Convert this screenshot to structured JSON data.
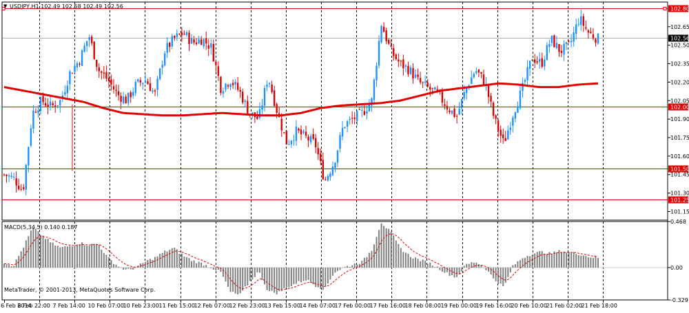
{
  "header": {
    "symbol_line": "USDJPY,H1  102.49 102.58 102.49 102.56"
  },
  "macd_header": "MACD(5,34,5) 0.140 0.187",
  "copyright": "MetaTrader, © 2001-2013, MetaQuotes Software Corp.",
  "colors": {
    "background": "#ffffff",
    "grid": "#000000",
    "bull_candle": "#1e90ff",
    "bear_candle": "#dd0000",
    "moving_average": "#e00000",
    "hline": "#e00000",
    "macd_hist": "#808080",
    "macd_signal": "#e00000",
    "axis_text": "#000000"
  },
  "chart_data": [
    {
      "type": "candlestick",
      "symbol": "USDJPY",
      "timeframe": "H1",
      "ohlc_header": {
        "open": 102.49,
        "high": 102.58,
        "low": 102.49,
        "close": 102.56
      },
      "ylim": [
        101.08,
        102.85
      ],
      "y_ticks": [
        "102.65",
        "102.50",
        "102.35",
        "102.20",
        "102.05",
        "101.90",
        "101.75",
        "101.60",
        "101.45",
        "101.30",
        "101.15"
      ],
      "x_labels": [
        "6 Feb 2014",
        "6 Feb 22:00",
        "7 Feb 14:00",
        "10 Feb 07:00",
        "10 Feb 23:00",
        "11 Feb 15:00",
        "12 Feb 07:00",
        "12 Feb 23:00",
        "13 Feb 15:00",
        "14 Feb 07:00",
        "17 Feb 00:00",
        "17 Feb 16:00",
        "18 Feb 08:00",
        "19 Feb 00:00",
        "19 Feb 16:00",
        "20 Feb 10:00",
        "21 Feb 02:00",
        "21 Feb 18:00"
      ],
      "horizontal_lines": [
        {
          "value": 102.8,
          "label": "102.80"
        },
        {
          "value": 102.0,
          "label": "102.00"
        },
        {
          "value": 101.5,
          "label": "101.50"
        },
        {
          "value": 101.25,
          "label": "101.25"
        }
      ],
      "current_price": {
        "value": 102.56,
        "label": "102.56"
      },
      "moving_average": [
        102.16,
        102.13,
        102.1,
        102.07,
        102.04,
        101.99,
        101.95,
        101.94,
        101.93,
        101.93,
        101.94,
        101.95,
        101.94,
        101.93,
        101.93,
        101.95,
        101.99,
        102.01,
        102.02,
        102.03,
        102.05,
        102.09,
        102.13,
        102.15,
        102.17,
        102.19,
        102.18,
        102.16,
        102.16,
        102.18,
        102.19
      ],
      "price_path": [
        101.45,
        101.42,
        101.32,
        101.95,
        102.05,
        102.0,
        102.05,
        102.28,
        102.38,
        102.58,
        102.3,
        102.22,
        102.1,
        102.05,
        102.18,
        102.22,
        102.1,
        102.45,
        102.55,
        102.6,
        102.52,
        102.55,
        102.48,
        102.15,
        102.22,
        102.12,
        101.95,
        101.9,
        102.25,
        101.95,
        101.7,
        101.8,
        101.75,
        101.7,
        101.4,
        101.55,
        101.85,
        101.9,
        101.95,
        102.05,
        102.68,
        102.45,
        102.35,
        102.3,
        102.2,
        102.15,
        102.1,
        102.0,
        101.92,
        102.15,
        102.3,
        102.2,
        101.9,
        101.7,
        101.95,
        102.15,
        102.4,
        102.35,
        102.55,
        102.45,
        102.5,
        102.72,
        102.6,
        102.55
      ]
    },
    {
      "type": "bar",
      "name": "MACD(5,34,5)",
      "values_header": [
        0.14,
        0.187
      ],
      "ylim": [
        -0.329,
        0.468
      ],
      "y_ticks": [
        "0.468",
        "0.00",
        "-0.329"
      ],
      "histogram_path": [
        0.05,
        0.02,
        0.2,
        0.4,
        0.33,
        0.25,
        0.2,
        0.22,
        0.25,
        0.23,
        0.24,
        0.1,
        0.02,
        -0.03,
        0.0,
        0.06,
        0.1,
        0.16,
        0.2,
        0.12,
        0.07,
        0.04,
        0.0,
        -0.05,
        -0.25,
        -0.28,
        -0.15,
        -0.04,
        -0.24,
        -0.26,
        -0.2,
        -0.16,
        -0.12,
        -0.18,
        -0.22,
        -0.05,
        0.0,
        0.03,
        0.06,
        0.18,
        0.46,
        0.36,
        0.2,
        0.12,
        0.08,
        0.05,
        0.0,
        -0.06,
        -0.1,
        0.03,
        0.06,
        0.0,
        -0.12,
        -0.2,
        0.02,
        0.1,
        0.14,
        0.16,
        0.14,
        0.17,
        0.15,
        0.14,
        0.11,
        0.1
      ]
    }
  ]
}
